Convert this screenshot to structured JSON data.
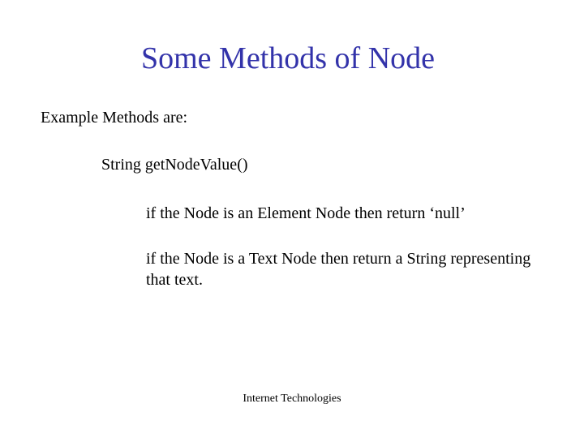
{
  "slide": {
    "title": "Some Methods of Node",
    "subtitle": "Example Methods are:",
    "method_name": "String getNodeValue()",
    "description_1": "if the Node is an Element Node then return ‘null’",
    "description_2": "if the Node is a Text Node then return a String representing that text.",
    "footer": "Internet Technologies"
  },
  "styling": {
    "title_color": "#3333aa",
    "text_color": "#000000",
    "background_color": "#ffffff",
    "title_fontsize": 38,
    "body_fontsize": 20,
    "footer_fontsize": 14,
    "font_family": "Times New Roman"
  }
}
